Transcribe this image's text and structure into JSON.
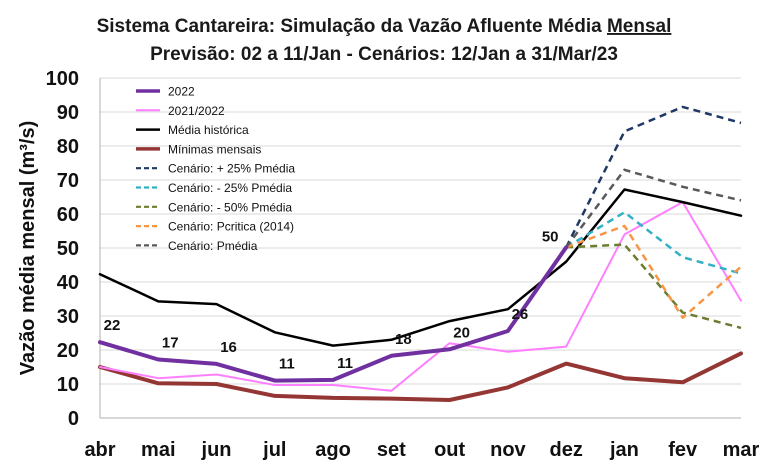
{
  "chart_data": {
    "type": "line",
    "title": "Sistema Cantareira: Simulação da Vazão Afluente Média",
    "title_underlined": "Mensal",
    "subtitle": "Previsão: 02 a 11/Jan - Cenários: 12/Jan a 31/Mar/23",
    "xlabel": "",
    "ylabel": "Vazão média mensal (m³/s)",
    "ylim": [
      0,
      100
    ],
    "yticks": [
      "0",
      "10",
      "20",
      "30",
      "40",
      "50",
      "60",
      "70",
      "80",
      "90",
      "100"
    ],
    "categories": [
      "abr",
      "mai",
      "jun",
      "jul",
      "ago",
      "set",
      "out",
      "nov",
      "dez",
      "jan",
      "fev",
      "mar"
    ],
    "legend_position": "top-left",
    "series": [
      {
        "name": "2022",
        "color": "#7030a0",
        "dash": "solid",
        "width": 4,
        "values": [
          22.3,
          17.2,
          15.9,
          11.0,
          11.2,
          18.3,
          20.2,
          25.6,
          50.2,
          null,
          null,
          null
        ],
        "labels": [
          "22",
          "17",
          "16",
          "11",
          "11",
          "18",
          "20",
          "26",
          "50",
          null,
          null,
          null
        ]
      },
      {
        "name": "2021/2022",
        "color": "#ff80ff",
        "dash": "solid",
        "width": 2,
        "values": [
          15.0,
          11.7,
          12.8,
          9.7,
          9.7,
          8.0,
          22.0,
          19.5,
          21.0,
          54.0,
          63.5,
          34.5
        ]
      },
      {
        "name": "Média histórica",
        "color": "#000000",
        "dash": "solid",
        "width": 2.5,
        "values": [
          42.3,
          34.3,
          33.5,
          25.2,
          21.3,
          23.0,
          28.5,
          32.0,
          46.0,
          67.2,
          63.5,
          59.5
        ]
      },
      {
        "name": "Mínimas mensais",
        "color": "#943634",
        "dash": "solid",
        "width": 4,
        "values": [
          15.0,
          10.2,
          10.0,
          6.5,
          5.9,
          5.7,
          5.3,
          9.0,
          16.0,
          11.7,
          10.5,
          19.0
        ]
      },
      {
        "name": "Cenário: + 25% Pmédia",
        "color": "#1f3864",
        "dash": "dash",
        "width": 2.5,
        "values": [
          null,
          null,
          null,
          null,
          null,
          null,
          null,
          null,
          50.2,
          84.3,
          91.5,
          86.8
        ]
      },
      {
        "name": "Cenário: - 25% Pmédia",
        "color": "#31b0c6",
        "dash": "dash",
        "width": 2.5,
        "values": [
          null,
          null,
          null,
          null,
          null,
          null,
          null,
          null,
          50.2,
          60.5,
          47.3,
          42.5
        ]
      },
      {
        "name": "Cenário: - 50% Pmédia",
        "color": "#6b7d2e",
        "dash": "dash",
        "width": 2.5,
        "values": [
          null,
          null,
          null,
          null,
          null,
          null,
          null,
          null,
          50.2,
          51.0,
          31.0,
          26.5
        ]
      },
      {
        "name": "Cenário: Pcritica (2014)",
        "color": "#f79646",
        "dash": "dash",
        "width": 2.5,
        "values": [
          null,
          null,
          null,
          null,
          null,
          null,
          null,
          null,
          50.2,
          56.5,
          29.5,
          44.5
        ]
      },
      {
        "name": "Cenário: Pmédia",
        "color": "#595959",
        "dash": "dash",
        "width": 2.5,
        "values": [
          null,
          null,
          null,
          null,
          null,
          null,
          null,
          null,
          50.2,
          73.0,
          68.0,
          64.0
        ]
      }
    ]
  }
}
